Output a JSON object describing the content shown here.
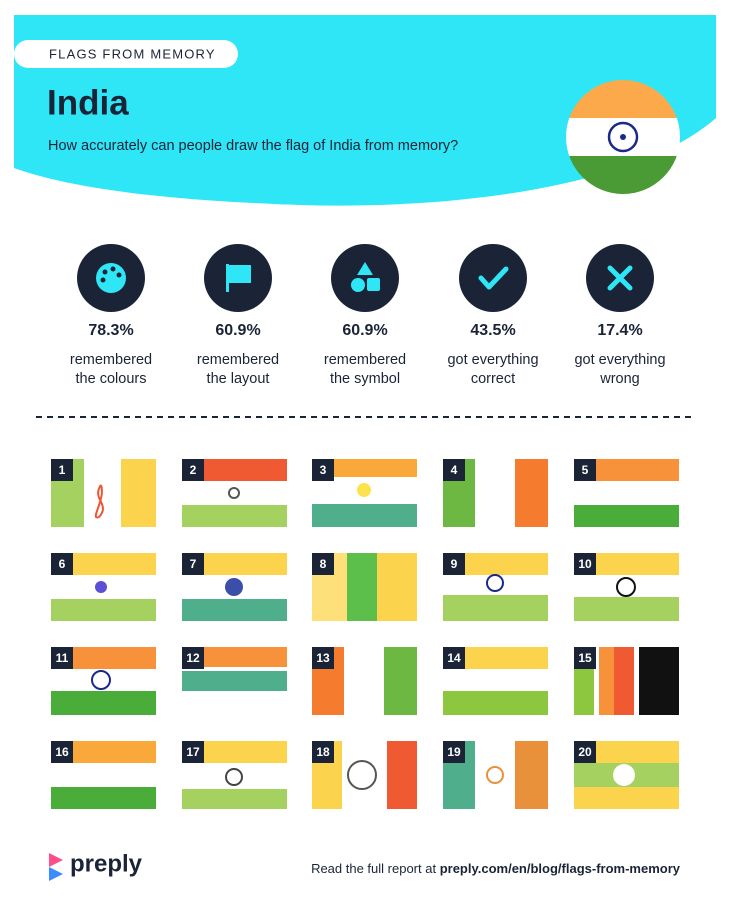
{
  "header": {
    "label": "FLAGS FROM MEMORY",
    "title": "India",
    "subtitle": "How accurately can people draw the flag of India from memory?"
  },
  "stats": [
    {
      "value": "78.3%",
      "label_lines": [
        "remembered",
        "the colours"
      ]
    },
    {
      "value": "60.9%",
      "label_lines": [
        "remembered",
        "the layout"
      ]
    },
    {
      "value": "60.9%",
      "label_lines": [
        "remembered",
        "the symbol"
      ]
    },
    {
      "value": "43.5%",
      "label_lines": [
        "got everything",
        "correct"
      ]
    },
    {
      "value": "17.4%",
      "label_lines": [
        "got everything",
        "wrong"
      ]
    }
  ],
  "drawings": [
    "1",
    "2",
    "3",
    "4",
    "5",
    "6",
    "7",
    "8",
    "9",
    "10",
    "11",
    "12",
    "13",
    "14",
    "15",
    "16",
    "17",
    "18",
    "19",
    "20"
  ],
  "footer": {
    "logo": "preply",
    "text": "Read the full report at ",
    "link": "preply.com/en/blog/flags-from-memory"
  }
}
